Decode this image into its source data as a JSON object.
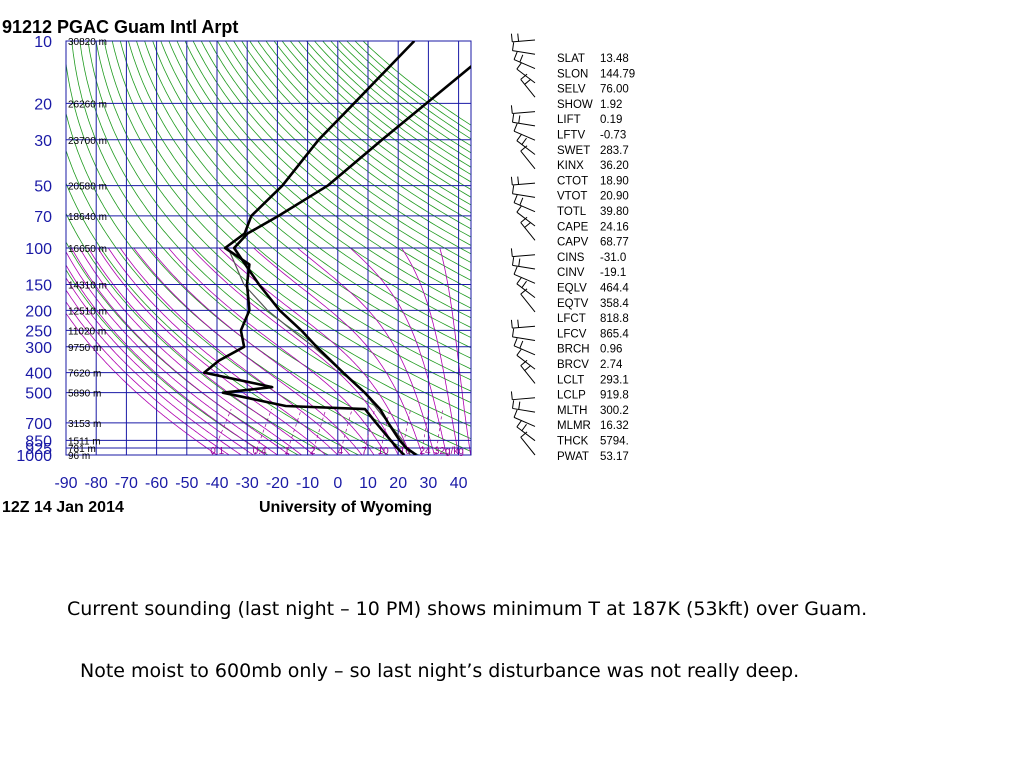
{
  "slide": {
    "caption_1": "Current sounding (last night – 10 PM) shows minimum T at 187K (53kft) over Guam.",
    "caption_2": "Note moist to 600mb only – so last night’s disturbance was not really deep."
  },
  "chart_data": {
    "type": "skew-t",
    "title": "91212 PGAC Guam Intl Arpt",
    "date_label": "12Z 14 Jan 2014",
    "credit": "University of Wyoming",
    "xlabel": "",
    "ylabel": "",
    "x_ticks": [
      "-90",
      "-80",
      "-70",
      "-60",
      "-50",
      "-40",
      "-30",
      "-20",
      "-10",
      "0",
      "10",
      "20",
      "30",
      "40"
    ],
    "x_range": [
      -90,
      40
    ],
    "pressure_range": [
      1000,
      10
    ],
    "pressure_ticks": [
      "10",
      "20",
      "30",
      "50",
      "70",
      "100",
      "150",
      "200",
      "250",
      "300",
      "400",
      "500",
      "700",
      "850",
      "925",
      "1000"
    ],
    "heights": [
      {
        "p": 10,
        "label": "30820 m"
      },
      {
        "p": 20,
        "label": "26260 m"
      },
      {
        "p": 30,
        "label": "23700 m"
      },
      {
        "p": 50,
        "label": "20580 m"
      },
      {
        "p": 70,
        "label": "18640 m"
      },
      {
        "p": 100,
        "label": "16650 m"
      },
      {
        "p": 150,
        "label": "14310 m"
      },
      {
        "p": 200,
        "label": "12510 m"
      },
      {
        "p": 250,
        "label": "11020 m"
      },
      {
        "p": 300,
        "label": "9750 m"
      },
      {
        "p": 400,
        "label": "7620 m"
      },
      {
        "p": 500,
        "label": "5890 m"
      },
      {
        "p": 700,
        "label": "3153 m"
      },
      {
        "p": 850,
        "label": "1511 m"
      },
      {
        "p": 925,
        "label": "781 m"
      },
      {
        "p": 1000,
        "label": "96 m"
      }
    ],
    "mixing_ratio_labels": [
      "0.1",
      "0.4",
      "1",
      "2",
      "4",
      "7",
      "10",
      "16",
      "24",
      "32g/kg"
    ],
    "temperature": [
      [
        1000,
        26
      ],
      [
        925,
        21
      ],
      [
        850,
        17
      ],
      [
        700,
        9
      ],
      [
        600,
        3
      ],
      [
        500,
        -6
      ],
      [
        400,
        -18
      ],
      [
        300,
        -33
      ],
      [
        250,
        -42
      ],
      [
        200,
        -54
      ],
      [
        150,
        -67
      ],
      [
        100,
        -84
      ],
      [
        85,
        -83
      ],
      [
        70,
        -77
      ],
      [
        50,
        -68
      ],
      [
        30,
        -61
      ],
      [
        20,
        -55
      ],
      [
        10,
        -45
      ]
    ],
    "dewpoint": [
      [
        1000,
        22
      ],
      [
        925,
        18
      ],
      [
        850,
        14
      ],
      [
        700,
        5
      ],
      [
        600,
        -2
      ],
      [
        580,
        -29
      ],
      [
        500,
        -53
      ],
      [
        470,
        -38
      ],
      [
        400,
        -64
      ],
      [
        350,
        -62
      ],
      [
        300,
        -57
      ],
      [
        250,
        -62
      ],
      [
        200,
        -64
      ],
      [
        150,
        -71
      ],
      [
        120,
        -75
      ],
      [
        100,
        -87
      ],
      [
        85,
        -84
      ],
      [
        70,
        -86
      ],
      [
        50,
        -83
      ],
      [
        30,
        -82
      ],
      [
        20,
        -79
      ],
      [
        10,
        -74
      ]
    ],
    "parcel": [
      [
        1000,
        24
      ],
      [
        925,
        21
      ],
      [
        850,
        18
      ],
      [
        700,
        9
      ],
      [
        600,
        2
      ],
      [
        500,
        -6
      ],
      [
        400,
        -18
      ],
      [
        300,
        -34
      ],
      [
        250,
        -45
      ],
      [
        200,
        -58
      ],
      [
        150,
        -72
      ],
      [
        100,
        -86
      ]
    ],
    "wind_barb_count": 30,
    "indices": [
      {
        "name": "SLAT",
        "value": "13.48"
      },
      {
        "name": "SLON",
        "value": "144.79"
      },
      {
        "name": "SELV",
        "value": "76.00"
      },
      {
        "name": "SHOW",
        "value": "1.92"
      },
      {
        "name": "LIFT",
        "value": "0.19"
      },
      {
        "name": "LFTV",
        "value": "-0.73"
      },
      {
        "name": "SWET",
        "value": "283.7"
      },
      {
        "name": "KINX",
        "value": "36.20"
      },
      {
        "name": "CTOT",
        "value": "18.90"
      },
      {
        "name": "VTOT",
        "value": "20.90"
      },
      {
        "name": "TOTL",
        "value": "39.80"
      },
      {
        "name": "CAPE",
        "value": "24.16"
      },
      {
        "name": "CAPV",
        "value": "68.77"
      },
      {
        "name": "CINS",
        "value": "-31.0"
      },
      {
        "name": "CINV",
        "value": "-19.1"
      },
      {
        "name": "EQLV",
        "value": "464.4"
      },
      {
        "name": "EQTV",
        "value": "358.4"
      },
      {
        "name": "LFCT",
        "value": "818.8"
      },
      {
        "name": "LFCV",
        "value": "865.4"
      },
      {
        "name": "BRCH",
        "value": "0.96"
      },
      {
        "name": "BRCV",
        "value": "2.74"
      },
      {
        "name": "LCLT",
        "value": "293.1"
      },
      {
        "name": "LCLP",
        "value": "919.8"
      },
      {
        "name": "MLTH",
        "value": "300.2"
      },
      {
        "name": "MLMR",
        "value": "16.32"
      },
      {
        "name": "THCK",
        "value": "5794."
      },
      {
        "name": "PWAT",
        "value": "53.17"
      }
    ],
    "colors": {
      "grid": "#1a1aa6",
      "dry_adiabat": "#1f9a1f",
      "moist_adiabat": "#b000b0",
      "mixing_ratio": "#9a009a",
      "profile": "#000000",
      "parcel": "#555555"
    }
  }
}
